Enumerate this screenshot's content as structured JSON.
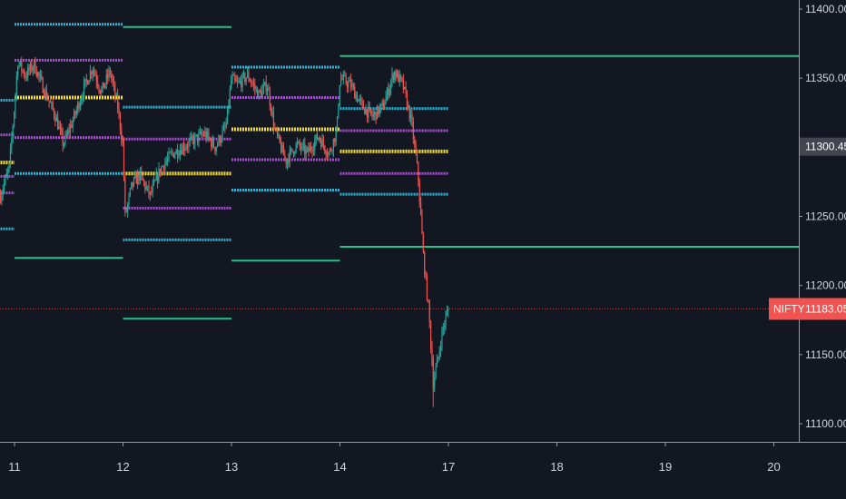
{
  "colors": {
    "background": "#131722",
    "axis_text": "#d1d4dc",
    "axis_line": "#9598a1",
    "candle_up": "#26a69a",
    "candle_down": "#ef5350",
    "level_green": "#22c28a",
    "level_cyan": "#29b6d6",
    "level_purple": "#a64fd0",
    "level_yellow": "#f0dc2e",
    "current_price_label_bg": "#f05350",
    "last_price_label_bg": "#434651"
  },
  "chart_data": {
    "type": "candlestick",
    "symbol": "NIFTY",
    "current_price": 11183.05,
    "current_price_label": "11183.05",
    "last_value": 11300.45,
    "last_value_label": "11300.45",
    "y_ticks": [
      "11100.00",
      "11150.00",
      "11200.00",
      "11250.00",
      "11300.00",
      "11350.00",
      "11400.00"
    ],
    "y_range": [
      11090,
      11410
    ],
    "x_range": [
      10.87,
      20.3
    ],
    "x_ticks": [
      {
        "value": 11,
        "label": "11"
      },
      {
        "value": 12,
        "label": "12"
      },
      {
        "value": 13,
        "label": "13"
      },
      {
        "value": 14,
        "label": "14"
      },
      {
        "value": 17,
        "label": "17",
        "pos": 15
      },
      {
        "value": 18,
        "label": "18",
        "pos": 16
      },
      {
        "value": 19,
        "label": "19",
        "pos": 17
      },
      {
        "value": 20,
        "label": "20",
        "pos": 18
      }
    ],
    "levels": [
      {
        "start": 10.87,
        "end": 11.0,
        "values": [
          11241,
          11267,
          11279,
          11289,
          11309,
          11334
        ]
      },
      {
        "start": 11.0,
        "end": 12.0,
        "series": [
          {
            "kind": "green",
            "value": 11220
          },
          {
            "kind": "cyan",
            "value": 11281
          },
          {
            "kind": "purple",
            "value": 11307
          },
          {
            "kind": "yellow",
            "value": 11336
          },
          {
            "kind": "purple",
            "value": 11363
          },
          {
            "kind": "cyan",
            "value": 11389
          }
        ]
      },
      {
        "start": 12.0,
        "end": 13.0,
        "series": [
          {
            "kind": "green",
            "value": 11176
          },
          {
            "kind": "cyan",
            "value": 11233
          },
          {
            "kind": "purple",
            "value": 11256
          },
          {
            "kind": "yellow",
            "value": 11281
          },
          {
            "kind": "purple",
            "value": 11306
          },
          {
            "kind": "cyan",
            "value": 11329
          },
          {
            "kind": "green",
            "value": 11387
          }
        ]
      },
      {
        "start": 13.0,
        "end": 14.0,
        "series": [
          {
            "kind": "green",
            "value": 11218
          },
          {
            "kind": "cyan",
            "value": 11269
          },
          {
            "kind": "purple",
            "value": 11291
          },
          {
            "kind": "yellow",
            "value": 11313
          },
          {
            "kind": "purple",
            "value": 11336
          },
          {
            "kind": "cyan",
            "value": 11358
          }
        ]
      },
      {
        "start": 14.0,
        "end": 15.0,
        "series": [
          {
            "kind": "green",
            "value": 11228
          },
          {
            "kind": "cyan",
            "value": 11266
          },
          {
            "kind": "purple",
            "value": 11281
          },
          {
            "kind": "yellow",
            "value": 11297
          },
          {
            "kind": "purple",
            "value": 11312
          },
          {
            "kind": "cyan",
            "value": 11328
          }
        ]
      },
      {
        "start": 14.0,
        "end": 20.3,
        "series": [
          {
            "kind": "green",
            "value": 11366
          },
          {
            "kind": "green",
            "value": 11228
          }
        ]
      }
    ],
    "price_path": [
      {
        "x": 10.87,
        "y": 11265
      },
      {
        "x": 10.95,
        "y": 11285
      },
      {
        "x": 11.0,
        "y": 11330
      },
      {
        "x": 11.03,
        "y": 11362
      },
      {
        "x": 11.1,
        "y": 11352
      },
      {
        "x": 11.18,
        "y": 11360
      },
      {
        "x": 11.28,
        "y": 11340
      },
      {
        "x": 11.38,
        "y": 11322
      },
      {
        "x": 11.45,
        "y": 11302
      },
      {
        "x": 11.55,
        "y": 11322
      },
      {
        "x": 11.65,
        "y": 11345
      },
      {
        "x": 11.72,
        "y": 11358
      },
      {
        "x": 11.8,
        "y": 11340
      },
      {
        "x": 11.88,
        "y": 11355
      },
      {
        "x": 11.95,
        "y": 11330
      },
      {
        "x": 12.0,
        "y": 11300
      },
      {
        "x": 12.02,
        "y": 11250
      },
      {
        "x": 12.08,
        "y": 11272
      },
      {
        "x": 12.15,
        "y": 11280
      },
      {
        "x": 12.25,
        "y": 11265
      },
      {
        "x": 12.35,
        "y": 11285
      },
      {
        "x": 12.45,
        "y": 11295
      },
      {
        "x": 12.55,
        "y": 11300
      },
      {
        "x": 12.65,
        "y": 11305
      },
      {
        "x": 12.75,
        "y": 11310
      },
      {
        "x": 12.85,
        "y": 11300
      },
      {
        "x": 12.95,
        "y": 11315
      },
      {
        "x": 13.0,
        "y": 11350
      },
      {
        "x": 13.05,
        "y": 11345
      },
      {
        "x": 13.15,
        "y": 11352
      },
      {
        "x": 13.25,
        "y": 11338
      },
      {
        "x": 13.33,
        "y": 11345
      },
      {
        "x": 13.4,
        "y": 11312
      },
      {
        "x": 13.5,
        "y": 11290
      },
      {
        "x": 13.6,
        "y": 11302
      },
      {
        "x": 13.7,
        "y": 11296
      },
      {
        "x": 13.8,
        "y": 11308
      },
      {
        "x": 13.9,
        "y": 11295
      },
      {
        "x": 13.97,
        "y": 11312
      },
      {
        "x": 14.0,
        "y": 11350
      },
      {
        "x": 14.1,
        "y": 11345
      },
      {
        "x": 14.2,
        "y": 11330
      },
      {
        "x": 14.3,
        "y": 11322
      },
      {
        "x": 14.4,
        "y": 11330
      },
      {
        "x": 14.5,
        "y": 11355
      },
      {
        "x": 14.58,
        "y": 11345
      },
      {
        "x": 14.66,
        "y": 11318
      },
      {
        "x": 14.72,
        "y": 11280
      },
      {
        "x": 14.77,
        "y": 11220
      },
      {
        "x": 14.82,
        "y": 11180
      },
      {
        "x": 14.86,
        "y": 11130
      },
      {
        "x": 14.9,
        "y": 11145
      },
      {
        "x": 14.94,
        "y": 11165
      },
      {
        "x": 14.97,
        "y": 11175
      },
      {
        "x": 15.0,
        "y": 11183
      }
    ]
  }
}
